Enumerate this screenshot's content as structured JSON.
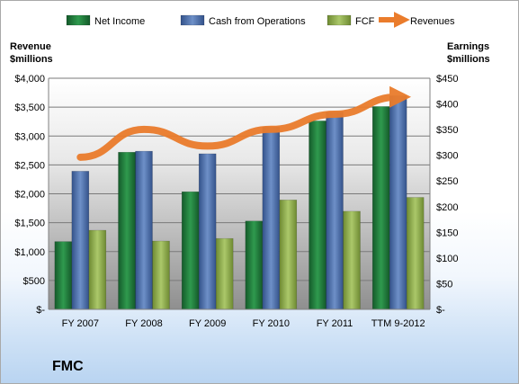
{
  "company": "FMC",
  "chart_data": {
    "type": "bar",
    "categories": [
      "FY 2007",
      "FY 2008",
      "FY 2009",
      "FY 2010",
      "FY 2011",
      "TTM 9-2012"
    ],
    "left_axis": {
      "title_line1": "Revenue",
      "title_line2": "$millions",
      "range": [
        0,
        4000
      ],
      "ticks": [
        "$-",
        "$500",
        "$1,000",
        "$1,500",
        "$2,000",
        "$2,500",
        "$3,000",
        "$3,500",
        "$4,000"
      ]
    },
    "right_axis": {
      "title_line1": "Earnings",
      "title_line2": "$millions",
      "range": [
        0,
        450
      ],
      "ticks": [
        "$-",
        "$50",
        "$100",
        "$150",
        "$200",
        "$250",
        "$300",
        "$350",
        "$400",
        "$450"
      ]
    },
    "series": [
      {
        "name": "Net Income",
        "kind": "bar",
        "axis": "right",
        "color": "#1e7a3a",
        "values": [
          132,
          306,
          229,
          172,
          367,
          395
        ]
      },
      {
        "name": "Cash from Operations",
        "kind": "bar",
        "axis": "right",
        "color": "#4a6fab",
        "values": [
          269,
          308,
          303,
          355,
          384,
          416
        ]
      },
      {
        "name": "FCF",
        "kind": "bar",
        "axis": "right",
        "color": "#8fb04a",
        "values": [
          154,
          133,
          138,
          213,
          191,
          218
        ]
      },
      {
        "name": "Revenues",
        "kind": "line",
        "axis": "left",
        "color": "#ea7c2c",
        "values": [
          2633,
          3115,
          2826,
          3116,
          3378,
          3677
        ]
      }
    ],
    "legend": "top",
    "grid": true
  }
}
